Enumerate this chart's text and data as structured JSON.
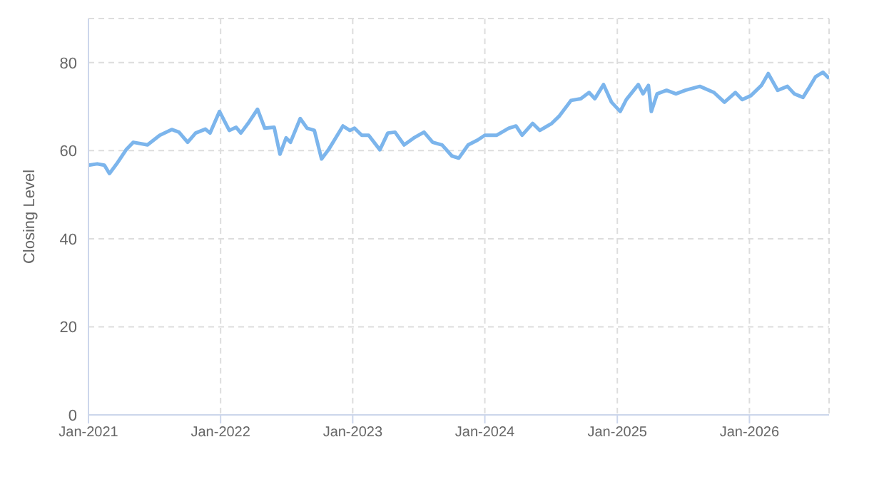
{
  "chart_data": {
    "type": "line",
    "ylabel": "Closing Level",
    "x": [
      "2021-01-01",
      "2021-01-25",
      "2021-02-14",
      "2021-02-28",
      "2021-03-20",
      "2021-04-15",
      "2021-05-05",
      "2021-06-13",
      "2021-07-17",
      "2021-08-19",
      "2021-09-08",
      "2021-10-02",
      "2021-10-24",
      "2021-11-20",
      "2021-12-03",
      "2021-12-29",
      "2022-01-25",
      "2022-02-13",
      "2022-02-26",
      "2022-03-18",
      "2022-04-13",
      "2022-05-03",
      "2022-05-29",
      "2022-06-14",
      "2022-07-01",
      "2022-07-13",
      "2022-08-09",
      "2022-08-28",
      "2022-09-17",
      "2022-10-07",
      "2022-10-26",
      "2022-12-05",
      "2022-12-24",
      "2023-01-06",
      "2023-01-26",
      "2023-02-14",
      "2023-03-17",
      "2023-04-08",
      "2023-04-28",
      "2023-05-23",
      "2023-06-19",
      "2023-07-17",
      "2023-08-10",
      "2023-09-05",
      "2023-10-02",
      "2023-10-21",
      "2023-11-16",
      "2023-12-12",
      "2024-01-01",
      "2024-02-03",
      "2024-03-07",
      "2024-03-27",
      "2024-04-13",
      "2024-05-12",
      "2024-06-01",
      "2024-07-04",
      "2024-07-24",
      "2024-08-26",
      "2024-09-22",
      "2024-10-15",
      "2024-10-31",
      "2024-11-24",
      "2024-12-16",
      "2025-01-09",
      "2025-01-26",
      "2025-02-28",
      "2025-03-13",
      "2025-03-28",
      "2025-04-05",
      "2025-04-21",
      "2025-05-17",
      "2025-06-12",
      "2025-07-08",
      "2025-08-17",
      "2025-09-25",
      "2025-10-24",
      "2025-11-23",
      "2025-12-12",
      "2026-01-05",
      "2026-02-03",
      "2026-02-22",
      "2026-03-20",
      "2026-04-16",
      "2026-05-05",
      "2026-05-29",
      "2026-06-14",
      "2026-07-03",
      "2026-07-23",
      "2026-08-09"
    ],
    "series": [
      {
        "color": "#7cb5ec",
        "values": [
          56.7,
          57.0,
          56.7,
          54.8,
          57.0,
          60.2,
          61.9,
          61.3,
          63.5,
          64.8,
          64.2,
          61.9,
          64.0,
          64.9,
          64.0,
          68.9,
          64.6,
          65.3,
          64.0,
          66.2,
          69.4,
          65.1,
          65.3,
          59.2,
          62.9,
          61.9,
          67.3,
          65.1,
          64.6,
          58.1,
          60.2,
          65.6,
          64.6,
          65.1,
          63.5,
          63.5,
          60.2,
          64.0,
          64.2,
          61.3,
          62.9,
          64.2,
          61.9,
          61.3,
          58.8,
          58.3,
          61.3,
          62.4,
          63.5,
          63.5,
          65.1,
          65.6,
          63.5,
          66.2,
          64.6,
          66.2,
          67.8,
          71.4,
          71.8,
          73.2,
          71.8,
          75.0,
          71.0,
          68.9,
          71.6,
          75.0,
          72.9,
          74.8,
          68.9,
          72.9,
          73.7,
          72.9,
          73.7,
          74.6,
          73.2,
          71.0,
          73.2,
          71.6,
          72.5,
          74.8,
          77.5,
          73.7,
          74.6,
          72.9,
          72.1,
          74.2,
          76.8,
          77.8,
          76.4
        ]
      }
    ],
    "xlim": [
      "2021-01-01",
      "2026-08-09"
    ],
    "xticks": [
      {
        "value": "2021-01-01",
        "label": "Jan-2021"
      },
      {
        "value": "2022-01-01",
        "label": "Jan-2022"
      },
      {
        "value": "2023-01-01",
        "label": "Jan-2023"
      },
      {
        "value": "2024-01-01",
        "label": "Jan-2024"
      },
      {
        "value": "2025-01-01",
        "label": "Jan-2025"
      },
      {
        "value": "2026-01-01",
        "label": "Jan-2026"
      }
    ],
    "ylim": [
      0,
      90
    ],
    "yticks": [
      0,
      20,
      40,
      60,
      80
    ],
    "grid": true,
    "marker": "none",
    "line_style": "solid"
  }
}
